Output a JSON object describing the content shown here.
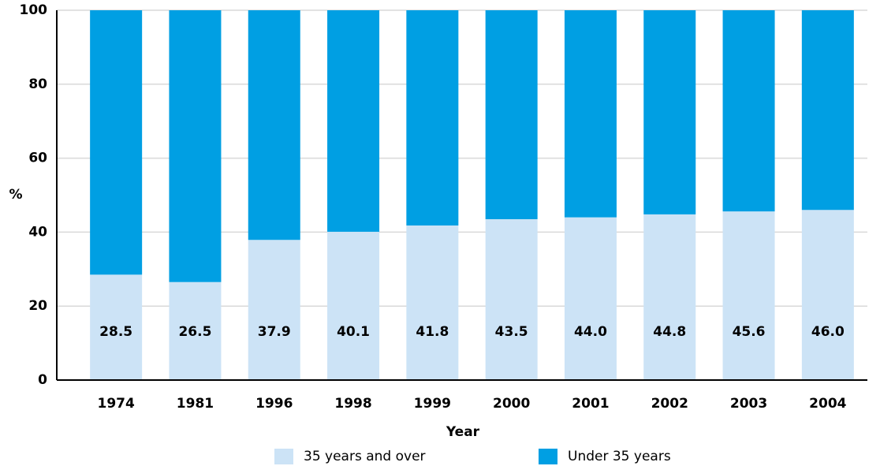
{
  "chart_data": {
    "type": "stacked_bar",
    "ylabel": "%",
    "xlabel": "Year",
    "categories": [
      "1974",
      "1981",
      "1996",
      "1998",
      "1999",
      "2000",
      "2001",
      "2002",
      "2003",
      "2004"
    ],
    "series": [
      {
        "name": "35 years and over",
        "color": "#cce3f6",
        "values": [
          28.5,
          26.5,
          37.9,
          40.1,
          41.8,
          43.5,
          44.0,
          44.8,
          45.6,
          46.0
        ],
        "value_labels": [
          "28.5",
          "26.5",
          "37.9",
          "40.1",
          "41.8",
          "43.5",
          "44.0",
          "44.8",
          "45.6",
          "46.0"
        ]
      },
      {
        "name": "Under 35 years",
        "color": "#009fe3",
        "values": [
          71.5,
          73.5,
          62.1,
          59.9,
          58.2,
          56.5,
          56.0,
          55.2,
          54.4,
          54.0
        ]
      }
    ],
    "ylim": [
      0,
      100
    ],
    "yticks": [
      0,
      20,
      40,
      60,
      80,
      100
    ],
    "grid": true
  }
}
